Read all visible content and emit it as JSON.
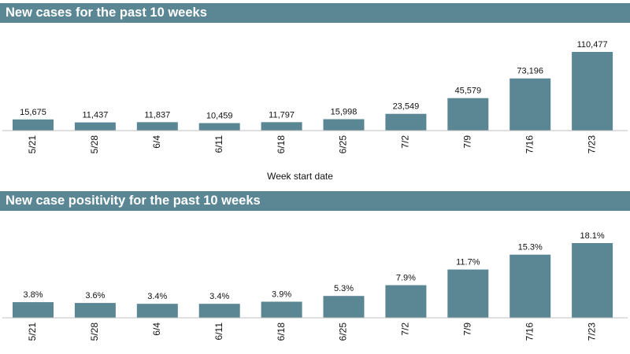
{
  "colors": {
    "bar": "#5b8794",
    "header": "#5b8794"
  },
  "chart_data": [
    {
      "type": "bar",
      "title": "New cases for the past 10 weeks",
      "xlabel": "Week start date",
      "ylabel": "",
      "categories": [
        "5/21",
        "5/28",
        "6/4",
        "6/11",
        "6/18",
        "6/25",
        "7/2",
        "7/9",
        "7/16",
        "7/23"
      ],
      "values": [
        15675,
        11437,
        11837,
        10459,
        11797,
        15998,
        23549,
        45579,
        73196,
        110477
      ],
      "value_labels": [
        "15,675",
        "11,437",
        "11,837",
        "10,459",
        "11,797",
        "15,998",
        "23,549",
        "45,579",
        "73,196",
        "110,477"
      ],
      "ylim": [
        0,
        110477
      ],
      "grid": false,
      "legend": "none"
    },
    {
      "type": "bar",
      "title": "New case positivity for the past 10 weeks",
      "xlabel": "",
      "ylabel": "",
      "categories": [
        "5/21",
        "5/28",
        "6/4",
        "6/11",
        "6/18",
        "6/25",
        "7/2",
        "7/9",
        "7/16",
        "7/23"
      ],
      "values": [
        3.8,
        3.6,
        3.4,
        3.4,
        3.9,
        5.3,
        7.9,
        11.7,
        15.3,
        18.1
      ],
      "value_labels": [
        "3.8%",
        "3.6%",
        "3.4%",
        "3.4%",
        "3.9%",
        "5.3%",
        "7.9%",
        "11.7%",
        "15.3%",
        "18.1%"
      ],
      "ylim": [
        0,
        18.1
      ],
      "grid": false,
      "legend": "none"
    }
  ]
}
